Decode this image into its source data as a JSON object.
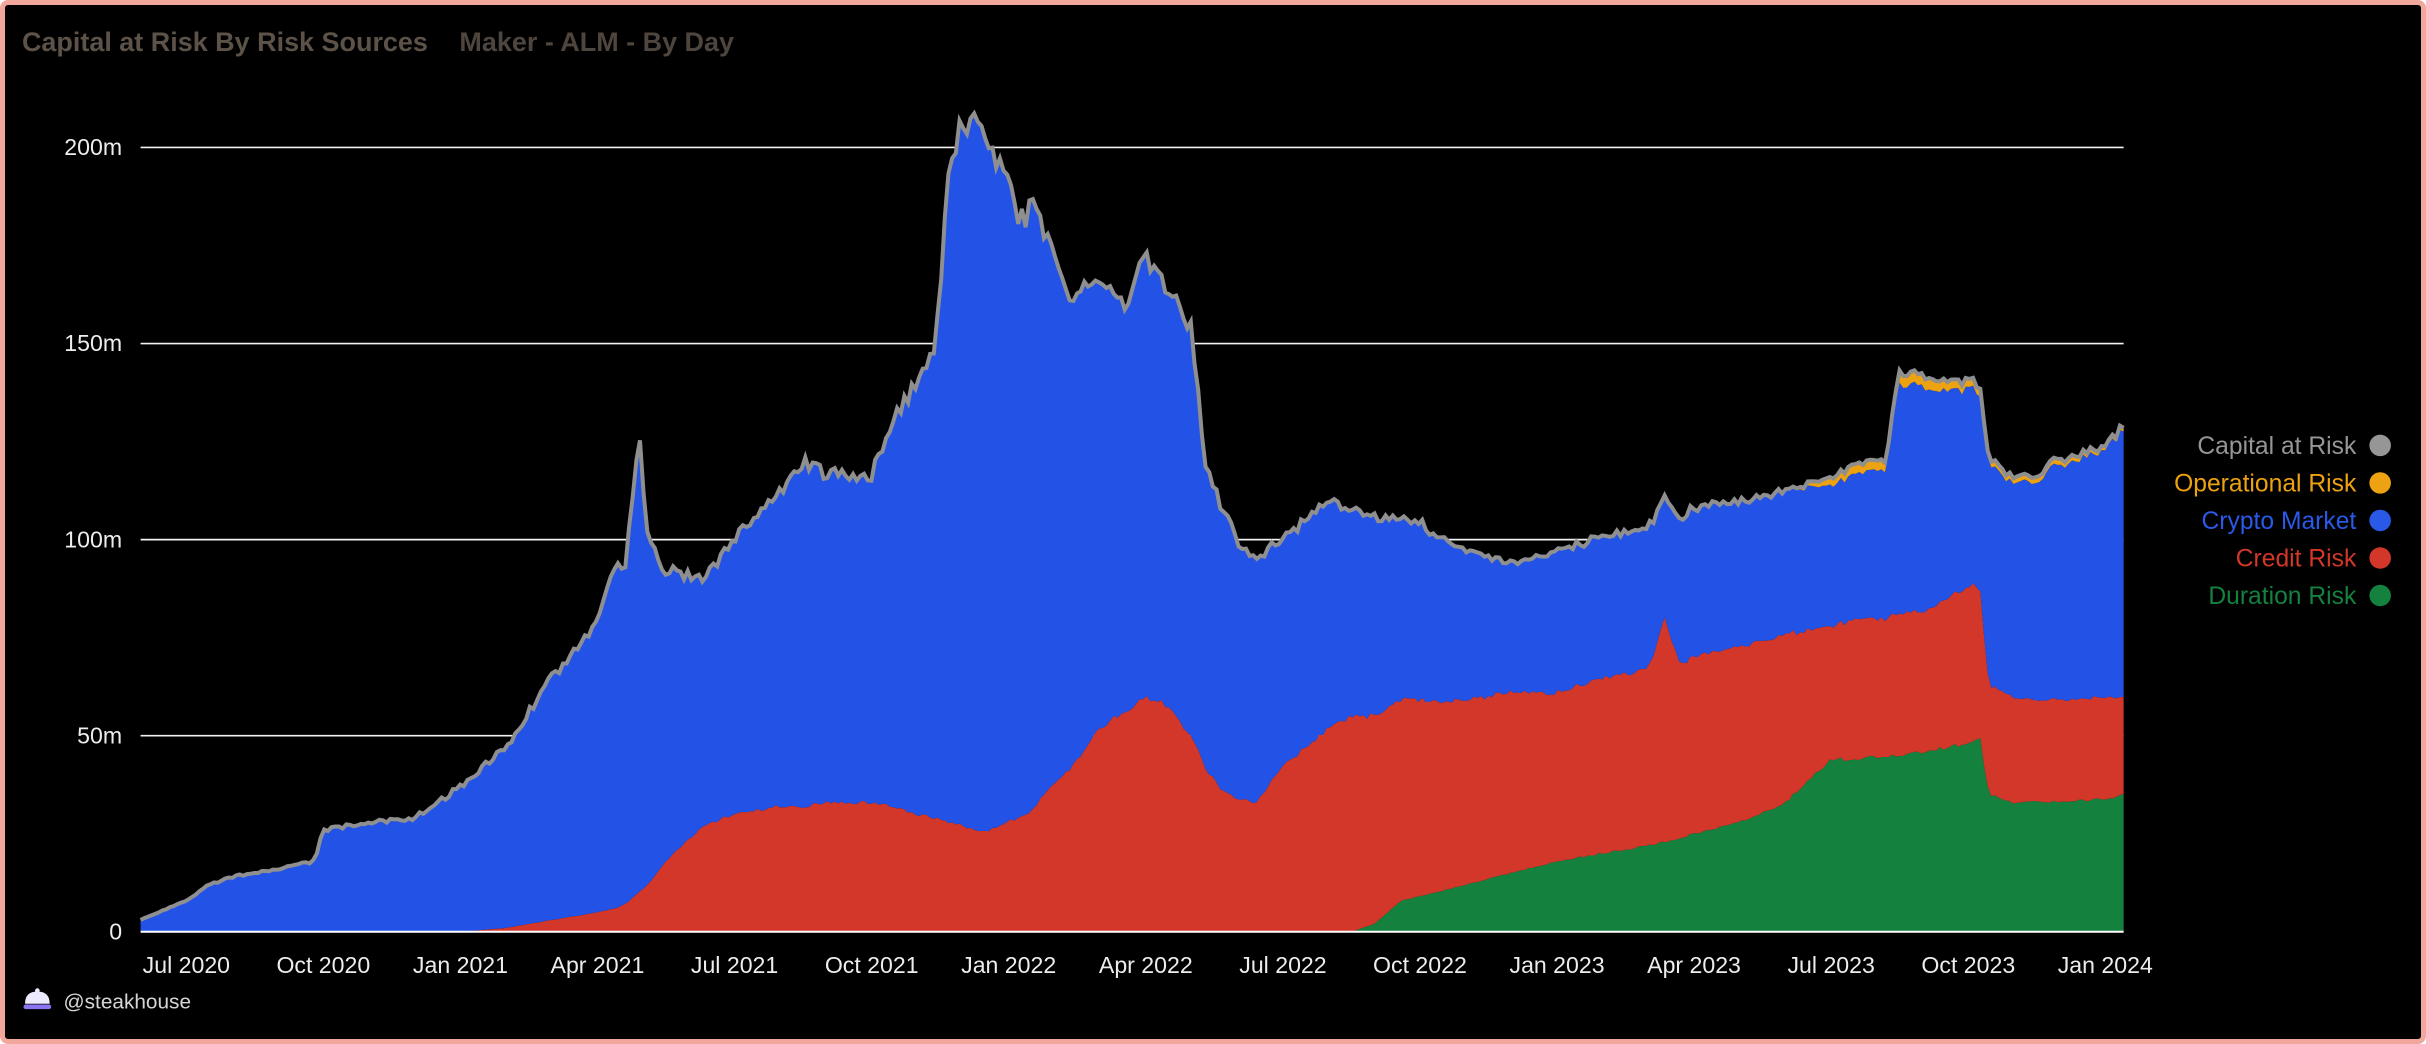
{
  "header": {
    "title": "Capital at Risk By Risk Sources",
    "subtitle": "Maker - ALM - By Day"
  },
  "footer": {
    "handle": "@steakhouse",
    "logo_icon": "steakhouse-logo-icon"
  },
  "colors": {
    "background": "#000000",
    "border": "#f2a79c",
    "grid": "#ffffff",
    "axis_label": "#ededed",
    "title": "#5c5248",
    "subtitle": "#4e463e",
    "watermark": "#d6d6d6"
  },
  "legend": [
    {
      "label": "Capital at Risk",
      "color": "#969696"
    },
    {
      "label": "Operational Risk",
      "color": "#eda211"
    },
    {
      "label": "Crypto Market",
      "color": "#2a59e8"
    },
    {
      "label": "Credit Risk",
      "color": "#d2372a"
    },
    {
      "label": "Duration Risk",
      "color": "#15813f"
    }
  ],
  "chart_data": {
    "type": "area",
    "stacked": true,
    "title": "Capital at Risk By Risk Sources",
    "subtitle": "Maker - ALM - By Day",
    "ylabel": "",
    "xlabel": "",
    "ylim": [
      0,
      200
    ],
    "legend_position": "right",
    "grid": "horizontal-white-lines",
    "x_unit": "months_since_2020-06",
    "x_ticks": [
      {
        "m": 1,
        "label": "Jul 2020"
      },
      {
        "m": 4,
        "label": "Oct 2020"
      },
      {
        "m": 7,
        "label": "Jan 2021"
      },
      {
        "m": 10,
        "label": "Apr 2021"
      },
      {
        "m": 13,
        "label": "Jul 2021"
      },
      {
        "m": 16,
        "label": "Oct 2021"
      },
      {
        "m": 19,
        "label": "Jan 2022"
      },
      {
        "m": 22,
        "label": "Apr 2022"
      },
      {
        "m": 25,
        "label": "Jul 2022"
      },
      {
        "m": 28,
        "label": "Oct 2022"
      },
      {
        "m": 31,
        "label": "Jan 2023"
      },
      {
        "m": 34,
        "label": "Apr 2023"
      },
      {
        "m": 37,
        "label": "Jul 2023"
      },
      {
        "m": 40,
        "label": "Oct 2023"
      },
      {
        "m": 43,
        "label": "Jan 2024"
      }
    ],
    "y_ticks": [
      {
        "value": 0,
        "label": "0"
      },
      {
        "value": 50,
        "label": "50m"
      },
      {
        "value": 100,
        "label": "100m"
      },
      {
        "value": 150,
        "label": "150m"
      },
      {
        "value": 200,
        "label": "200m"
      }
    ],
    "x": [
      0,
      1,
      1.5,
      2,
      3,
      3.8,
      4,
      5,
      6,
      7,
      8,
      9,
      10,
      10.4,
      10.6,
      10.9,
      11.1,
      11.5,
      12.3,
      13,
      14,
      14.5,
      15,
      16,
      16.5,
      17,
      17.4,
      17.7,
      18,
      18.3,
      18.6,
      19,
      19.2,
      19.5,
      20,
      20.3,
      21,
      21.5,
      22,
      22.4,
      23,
      23.3,
      23.6,
      24,
      24.4,
      25,
      26,
      26.5,
      27,
      27.6,
      28,
      29,
      30,
      31,
      32,
      33,
      33.35,
      33.7,
      34,
      35,
      36,
      37,
      37.5,
      38.2,
      38.45,
      39,
      39.5,
      40.1,
      40.25,
      40.45,
      41,
      41.5,
      42,
      43,
      43.4
    ],
    "units": "millions",
    "series": [
      {
        "name": "Duration Risk",
        "color": "#15813f",
        "values": [
          0,
          0,
          0,
          0,
          0,
          0,
          0,
          0,
          0,
          0,
          0,
          0,
          0,
          0,
          0,
          0,
          0,
          0,
          0,
          0,
          0,
          0,
          0,
          0,
          0,
          0,
          0,
          0,
          0,
          0,
          0,
          0,
          0,
          0,
          0,
          0,
          0,
          0,
          0,
          0,
          0,
          0,
          0,
          0,
          0,
          0,
          0,
          0,
          2,
          8,
          9,
          12,
          15,
          18,
          20,
          22,
          23,
          24,
          25,
          28,
          33,
          44,
          44,
          45,
          45,
          46,
          47,
          48,
          50,
          35,
          33,
          33,
          33,
          34,
          35
        ]
      },
      {
        "name": "Credit Risk",
        "color": "#d2372a",
        "values": [
          0,
          0,
          0,
          0,
          0,
          0,
          0,
          0,
          0,
          0,
          1,
          3,
          5,
          6,
          7,
          10,
          12,
          18,
          27,
          30,
          32,
          32,
          33,
          33,
          32,
          30,
          29,
          28,
          27,
          26,
          26,
          28,
          29,
          31,
          38,
          41,
          52,
          56,
          60,
          58,
          50,
          42,
          37,
          34,
          33,
          42,
          52,
          55,
          53,
          51,
          50,
          47,
          46,
          43,
          45,
          45,
          57,
          44,
          45,
          45,
          43,
          34,
          36,
          35,
          36,
          36,
          38,
          40,
          38,
          28,
          27,
          26,
          26,
          26,
          25
        ]
      },
      {
        "name": "Crypto Market",
        "color": "#2353e6",
        "values": [
          3,
          8,
          12,
          14,
          16,
          18,
          26,
          28,
          29,
          37,
          46,
          62,
          73,
          88,
          85,
          118,
          88,
          74,
          63,
          70,
          80,
          88,
          84,
          84,
          100,
          110,
          121,
          170,
          178,
          184,
          172,
          165,
          151,
          154,
          134,
          119,
          116,
          104,
          112,
          107,
          104,
          78,
          73,
          66,
          62,
          58,
          58,
          52,
          51,
          46,
          45,
          38,
          33,
          36,
          36,
          36,
          31,
          37,
          38,
          37,
          37,
          36,
          37,
          38,
          58,
          58,
          53,
          50,
          49,
          56,
          54,
          56,
          60,
          63,
          69
        ]
      },
      {
        "name": "Operational Risk",
        "color": "#eda211",
        "values": [
          0,
          0,
          0,
          0,
          0,
          0,
          0,
          0,
          0,
          0,
          0,
          0,
          0,
          0,
          0,
          0,
          0,
          0,
          0,
          0,
          0,
          0,
          0,
          0,
          0,
          0,
          0,
          0,
          0,
          0,
          0,
          0,
          0,
          0,
          0,
          0,
          0,
          0,
          0,
          0,
          0,
          0,
          0,
          0,
          0,
          0,
          0,
          0,
          0,
          0,
          0,
          0,
          0,
          0,
          0,
          0,
          0,
          0,
          0,
          0,
          0,
          2,
          2.5,
          2.5,
          3,
          3,
          2.5,
          2,
          2,
          1.5,
          1.5,
          1.5,
          1.5,
          1,
          1
        ]
      },
      {
        "name": "Capital at Risk",
        "color": "#8f8f8f",
        "role": "total_line",
        "derived": "sum_of_area_series"
      }
    ]
  }
}
